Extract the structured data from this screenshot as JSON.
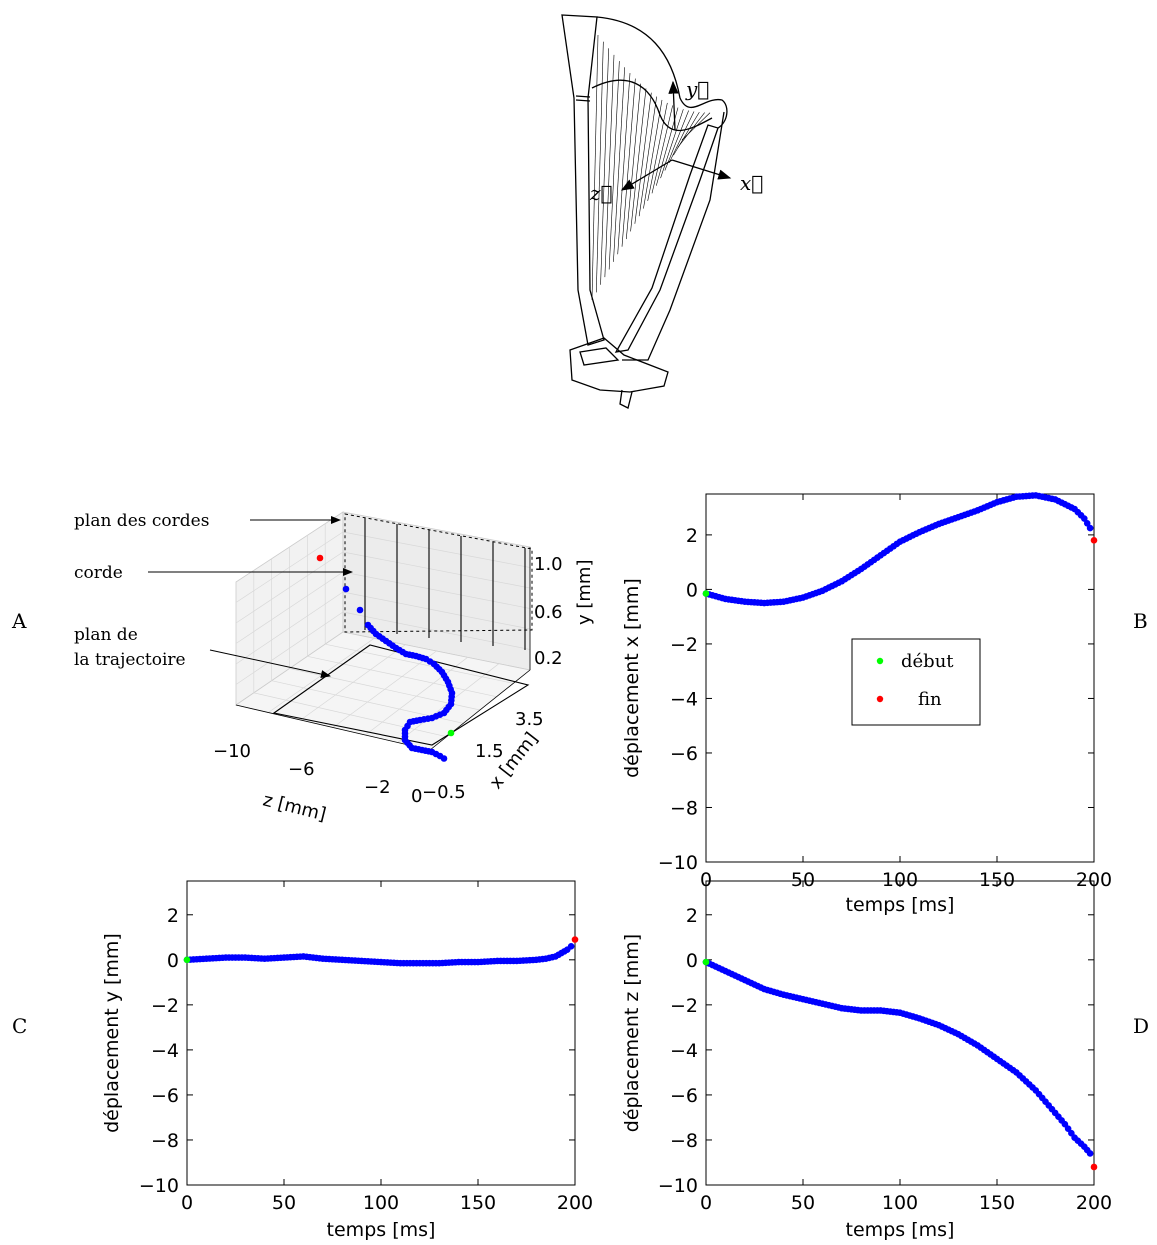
{
  "panel_labels": {
    "a": "A",
    "b": "B",
    "c": "C",
    "d": "D"
  },
  "harp": {
    "axis_x": "x⃗",
    "axis_y": "y⃗",
    "axis_z": "z⃗"
  },
  "colors": {
    "series": "#0000ff",
    "start": "#00ff00",
    "end": "#ff0000",
    "axis": "#000000"
  },
  "chart_data": [
    {
      "id": "A",
      "type": "scatter",
      "projection": "3d",
      "annotations": {
        "strings_plane": "plan des cordes",
        "string": "corde",
        "trajectory_plane_line1": "plan de",
        "trajectory_plane_line2": "la trajectoire"
      },
      "zlabel": "z [mm]",
      "xlabel": "x [mm]",
      "ylabel": "y [mm]",
      "z_ticks": [
        "−10",
        "−6",
        "−2",
        "0"
      ],
      "x_ticks": [
        "−0.5",
        "1.5",
        "3.5"
      ],
      "y_ticks": [
        "0.2",
        "0.6",
        "1.0"
      ],
      "grid": true
    },
    {
      "id": "B",
      "type": "scatter",
      "xlabel": "temps [ms]",
      "ylabel": "déplacement x [mm]",
      "xlim": [
        0,
        200
      ],
      "ylim": [
        -10,
        3.5
      ],
      "x_ticks": [
        "0",
        "50",
        "100",
        "150",
        "200"
      ],
      "y_ticks": [
        "−10",
        "−8",
        "−6",
        "−4",
        "−2",
        "0",
        "2"
      ],
      "legend": {
        "placement": "center",
        "start": "début",
        "end": "fin"
      },
      "series": [
        {
          "x": [
            0,
            10,
            20,
            30,
            40,
            50,
            60,
            70,
            80,
            90,
            100,
            110,
            120,
            130,
            140,
            150,
            160,
            170,
            180,
            190,
            195,
            198
          ],
          "y": [
            -0.15,
            -0.35,
            -0.45,
            -0.5,
            -0.45,
            -0.3,
            -0.05,
            0.3,
            0.75,
            1.25,
            1.75,
            2.1,
            2.4,
            2.65,
            2.9,
            3.2,
            3.4,
            3.45,
            3.3,
            2.95,
            2.6,
            2.25
          ]
        }
      ],
      "start_point": {
        "x": 0,
        "y": -0.15
      },
      "end_point": {
        "x": 200,
        "y": 1.8
      }
    },
    {
      "id": "C",
      "type": "scatter",
      "xlabel": "temps [ms]",
      "ylabel": "déplacement y [mm]",
      "xlim": [
        0,
        200
      ],
      "ylim": [
        -10,
        3.5
      ],
      "x_ticks": [
        "0",
        "50",
        "100",
        "150",
        "200"
      ],
      "y_ticks": [
        "−10",
        "−8",
        "−6",
        "−4",
        "−2",
        "0",
        "2"
      ],
      "series": [
        {
          "x": [
            0,
            10,
            20,
            30,
            40,
            50,
            60,
            70,
            80,
            90,
            100,
            110,
            120,
            130,
            140,
            150,
            160,
            170,
            180,
            185,
            190,
            193,
            196,
            198
          ],
          "y": [
            0.0,
            0.05,
            0.1,
            0.1,
            0.05,
            0.1,
            0.15,
            0.05,
            0.0,
            -0.05,
            -0.1,
            -0.15,
            -0.15,
            -0.15,
            -0.1,
            -0.1,
            -0.05,
            -0.05,
            0.0,
            0.05,
            0.15,
            0.3,
            0.45,
            0.6
          ]
        }
      ],
      "start_point": {
        "x": 0,
        "y": 0.0
      },
      "end_point": {
        "x": 200,
        "y": 0.9
      }
    },
    {
      "id": "D",
      "type": "scatter",
      "xlabel": "temps [ms]",
      "ylabel": "déplacement z [mm]",
      "xlim": [
        0,
        200
      ],
      "ylim": [
        -10,
        3.5
      ],
      "x_ticks": [
        "0",
        "50",
        "100",
        "150",
        "200"
      ],
      "y_ticks": [
        "−10",
        "−8",
        "−6",
        "−4",
        "−2",
        "0",
        "2"
      ],
      "series": [
        {
          "x": [
            0,
            10,
            20,
            30,
            40,
            50,
            60,
            70,
            80,
            90,
            100,
            110,
            120,
            130,
            140,
            150,
            160,
            170,
            180,
            185,
            190,
            195,
            198
          ],
          "y": [
            -0.1,
            -0.5,
            -0.9,
            -1.3,
            -1.55,
            -1.75,
            -1.95,
            -2.15,
            -2.25,
            -2.25,
            -2.35,
            -2.6,
            -2.9,
            -3.3,
            -3.8,
            -4.4,
            -5.0,
            -5.8,
            -6.8,
            -7.3,
            -7.9,
            -8.3,
            -8.6
          ]
        }
      ],
      "start_point": {
        "x": 0,
        "y": -0.1
      },
      "end_point": {
        "x": 200,
        "y": -9.2
      }
    }
  ]
}
